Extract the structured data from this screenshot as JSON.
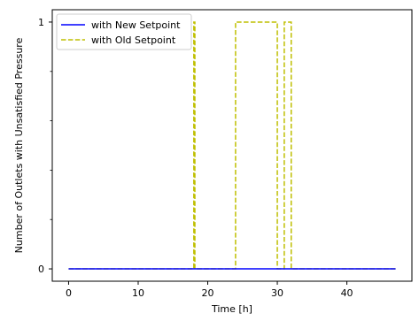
{
  "chart_data": {
    "type": "line",
    "title": "",
    "xlabel": "Time [h]",
    "ylabel": "Number of Outlets with Unsatisfied Pressure",
    "xlim": [
      -2.35,
      49.35
    ],
    "ylim": [
      -0.05,
      1.05
    ],
    "x_ticks": [
      0,
      10,
      20,
      30,
      40
    ],
    "y_ticks": [
      0,
      1
    ],
    "y_minor_ticks": [
      0.2,
      0.4,
      0.6,
      0.8
    ],
    "grid": false,
    "legend_position": "top-left",
    "series": [
      {
        "name": "with New Setpoint",
        "color": "#0000ff",
        "style": "solid",
        "x": [
          0,
          47
        ],
        "y": [
          0,
          0
        ]
      },
      {
        "name": "with Old Setpoint",
        "color": "#bfbf00",
        "style": "dashed",
        "step": "post",
        "x": [
          0,
          18,
          18.15,
          24,
          30,
          31,
          32,
          47
        ],
        "y": [
          0,
          1,
          0,
          1,
          0,
          1,
          0,
          0
        ]
      }
    ]
  }
}
